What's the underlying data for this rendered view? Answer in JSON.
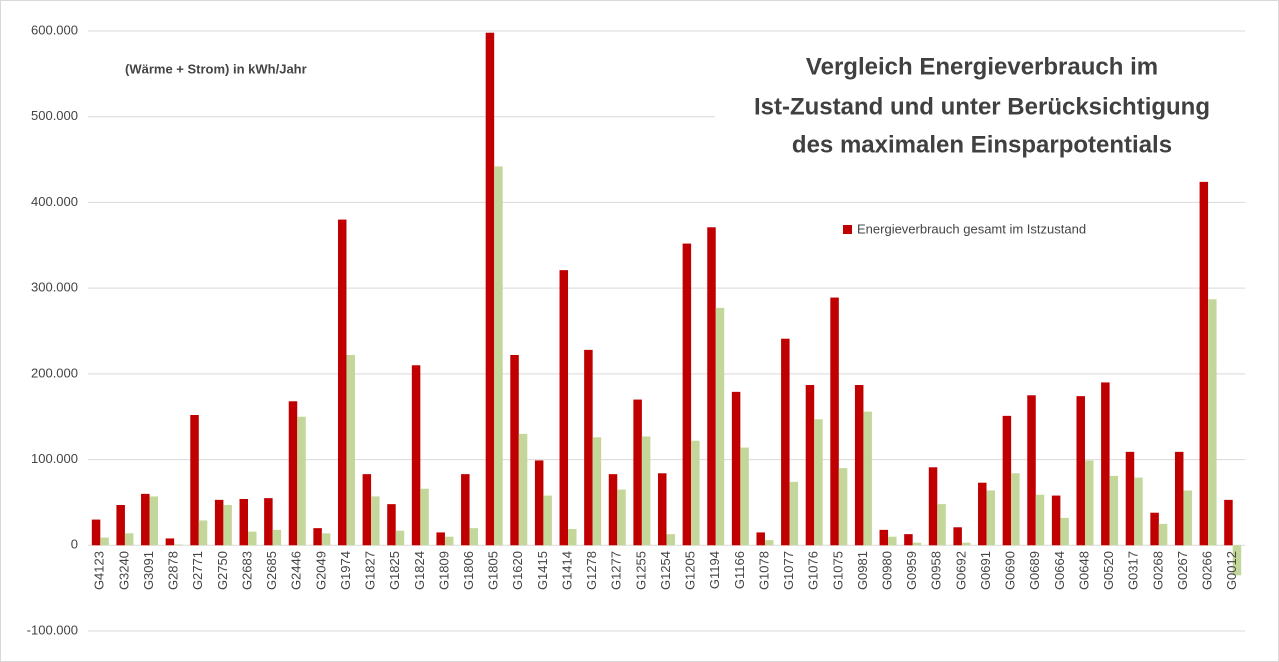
{
  "chart_data": {
    "type": "bar",
    "title": [
      "Vergleich Energieverbrauch im",
      "Ist-Zustand und unter Berücksichtigung",
      "des maximalen Einsparpotentials"
    ],
    "annotation": "(Wärme + Strom) in  kWh/Jahr",
    "categories": [
      "G4123",
      "G3240",
      "G3091",
      "G2878",
      "G2771",
      "G2750",
      "G2683",
      "G2685",
      "G2446",
      "G2049",
      "G1974",
      "G1827",
      "G1825",
      "G1824",
      "G1809",
      "G1806",
      "G1805",
      "G1620",
      "G1415",
      "G1414",
      "G1278",
      "G1277",
      "G1255",
      "G1254",
      "G1205",
      "G1194",
      "G1166",
      "G1078",
      "G1077",
      "G1076",
      "G1075",
      "G0981",
      "G0980",
      "G0959",
      "G0958",
      "G0692",
      "G0691",
      "G0690",
      "G0689",
      "G0664",
      "G0648",
      "G0520",
      "G0317",
      "G0268",
      "G0267",
      "G0266",
      "G0012"
    ],
    "series": [
      {
        "name": "Energieverbrauch gesamt im Istzustand",
        "color": "#c00000",
        "values": [
          30000,
          47000,
          60000,
          8000,
          152000,
          53000,
          54000,
          55000,
          168000,
          20000,
          380000,
          83000,
          48000,
          210000,
          15000,
          83000,
          598000,
          222000,
          99000,
          321000,
          228000,
          83000,
          170000,
          84000,
          352000,
          371000,
          179000,
          15000,
          241000,
          187000,
          289000,
          187000,
          18000,
          13000,
          91000,
          21000,
          73000,
          151000,
          175000,
          58000,
          174000,
          190000,
          109000,
          38000,
          109000,
          424000,
          53000
        ]
      },
      {
        "color": "#c4d79b",
        "values": [
          9000,
          14000,
          57000,
          1000,
          29000,
          47000,
          16000,
          18000,
          150000,
          14000,
          222000,
          57000,
          17000,
          66000,
          10000,
          20000,
          442000,
          130000,
          58000,
          19000,
          126000,
          65000,
          127000,
          13000,
          122000,
          277000,
          114000,
          6000,
          74000,
          147000,
          90000,
          156000,
          10000,
          3000,
          48000,
          3000,
          64000,
          84000,
          59000,
          32000,
          99000,
          81000,
          79000,
          25000,
          64000,
          287000,
          -35000
        ]
      }
    ],
    "ylim": [
      -100000,
      600000
    ],
    "yticks": [
      {
        "value": -100000,
        "label": "-100.000"
      },
      0,
      {
        "value": 100000,
        "label": "100.000"
      },
      {
        "value": 200000,
        "label": "200.000"
      },
      {
        "value": 300000,
        "label": "300.000"
      },
      {
        "value": 400000,
        "label": "400.000"
      },
      {
        "value": 500000,
        "label": "500.000"
      },
      {
        "value": 600000,
        "label": "600.000"
      }
    ],
    "grid": true
  }
}
